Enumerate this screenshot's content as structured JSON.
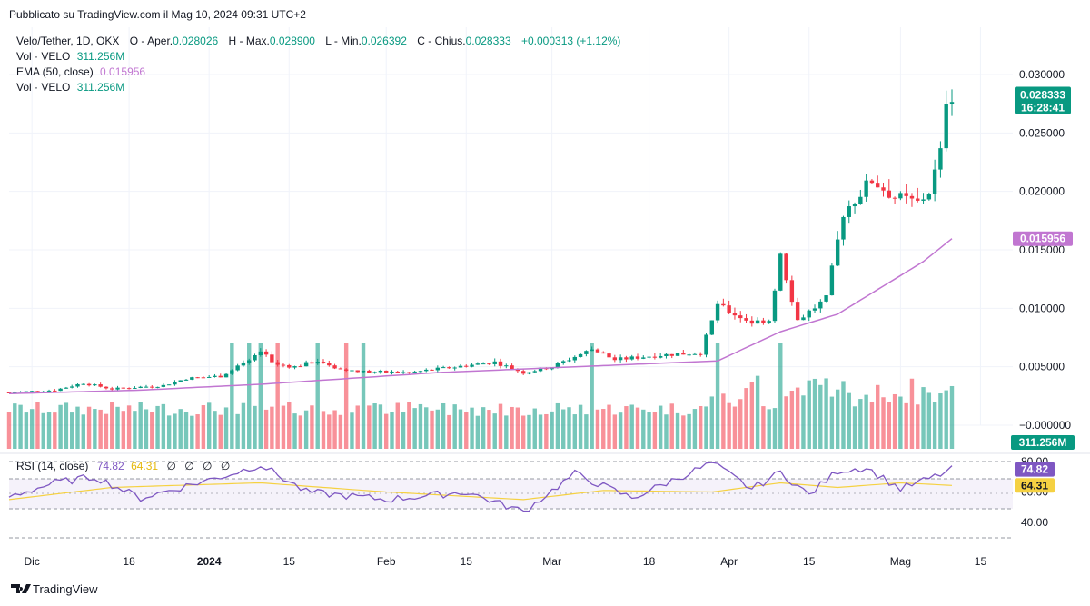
{
  "published": "Pubblicato su TradingView.com il Mag 10, 2024 09:31 UTC+2",
  "legend": {
    "symbol": "Velo/Tether, 1D, OKX",
    "open_label": "O - Aper.",
    "open": "0.028026",
    "high_label": "H - Max.",
    "high": "0.028900",
    "low_label": "L - Min.",
    "low": "0.026392",
    "close_label": "C - Chius.",
    "close": "0.028333",
    "change": "+0.000313 (+1.12%)",
    "vol1_label": "Vol · VELO",
    "vol1": "311.256M",
    "ema_label": "EMA (50, close)",
    "ema": "0.015956",
    "vol2_label": "Vol · VELO",
    "vol2": "311.256M"
  },
  "rsi_legend": {
    "label": "RSI (14, close)",
    "rsi": "74.82",
    "ma": "64.31",
    "extras": [
      "∅",
      "∅",
      "∅",
      "∅"
    ]
  },
  "badges": {
    "price": "0.028333",
    "countdown": "16:28:41",
    "ema": "0.015956",
    "volume": "311.256M",
    "rsi": "74.82",
    "rsi_ma": "64.31"
  },
  "price_axis": [
    "0.030000",
    "0.025000",
    "0.020000",
    "0.015000",
    "0.010000",
    "0.005000",
    "−0.000000"
  ],
  "rsi_axis": [
    "80.00",
    "60.00",
    "40.00"
  ],
  "x_axis": [
    "Dic",
    "18",
    "2024",
    "15",
    "Feb",
    "15",
    "Mar",
    "18",
    "Apr",
    "15",
    "Mag",
    "15"
  ],
  "brand": "TradingView",
  "colors": {
    "up": "#089981",
    "down": "#f23645",
    "ema": "#c176d1",
    "rsi": "#7e57c2",
    "rsi_ma": "#f5d142"
  },
  "chart_data": {
    "type": "candlestick",
    "title": "Velo/Tether, 1D, OKX",
    "x_start": "2023-11-27",
    "x_end": "2024-05-10",
    "price_range": [
      0,
      0.03
    ],
    "rsi_range": [
      40,
      80
    ],
    "price_path": [
      [
        "2023-11-27",
        0.0028
      ],
      [
        "2023-12-05",
        0.003
      ],
      [
        "2023-12-10",
        0.0036
      ],
      [
        "2023-12-15",
        0.0031
      ],
      [
        "2023-12-24",
        0.0034
      ],
      [
        "2023-12-28",
        0.004
      ],
      [
        "2024-01-03",
        0.0042
      ],
      [
        "2024-01-08",
        0.0055
      ],
      [
        "2024-01-10",
        0.0062
      ],
      [
        "2024-01-13",
        0.0052
      ],
      [
        "2024-01-16",
        0.005
      ],
      [
        "2024-01-20",
        0.0055
      ],
      [
        "2024-01-25",
        0.0046
      ],
      [
        "2024-02-05",
        0.0045
      ],
      [
        "2024-02-15",
        0.0051
      ],
      [
        "2024-02-20",
        0.0054
      ],
      [
        "2024-02-25",
        0.0045
      ],
      [
        "2024-03-01",
        0.005
      ],
      [
        "2024-03-08",
        0.0065
      ],
      [
        "2024-03-12",
        0.0056
      ],
      [
        "2024-03-20",
        0.006
      ],
      [
        "2024-03-27",
        0.0062
      ],
      [
        "2024-03-30",
        0.0102
      ],
      [
        "2024-04-05",
        0.0088
      ],
      [
        "2024-04-08",
        0.009
      ],
      [
        "2024-04-10",
        0.0145
      ],
      [
        "2024-04-13",
        0.009
      ],
      [
        "2024-04-18",
        0.0108
      ],
      [
        "2024-04-21",
        0.0182
      ],
      [
        "2024-04-26",
        0.021
      ],
      [
        "2024-04-30",
        0.0195
      ],
      [
        "2024-05-04",
        0.019
      ],
      [
        "2024-05-06",
        0.02
      ],
      [
        "2024-05-08",
        0.0232
      ],
      [
        "2024-05-09",
        0.028
      ],
      [
        "2024-05-10",
        0.028333
      ]
    ],
    "ema_path": [
      [
        "2023-11-27",
        0.0027
      ],
      [
        "2023-12-20",
        0.003
      ],
      [
        "2024-01-10",
        0.0035
      ],
      [
        "2024-02-10",
        0.0045
      ],
      [
        "2024-03-15",
        0.0052
      ],
      [
        "2024-03-30",
        0.0055
      ],
      [
        "2024-04-10",
        0.008
      ],
      [
        "2024-04-20",
        0.0095
      ],
      [
        "2024-04-30",
        0.0125
      ],
      [
        "2024-05-05",
        0.014
      ],
      [
        "2024-05-10",
        0.015956
      ]
    ],
    "volume_spikes": [
      [
        "2024-01-05",
        0.022
      ],
      [
        "2024-01-08",
        0.024
      ],
      [
        "2024-01-10",
        0.062
      ],
      [
        "2024-01-13",
        0.016
      ],
      [
        "2024-01-20",
        0.023
      ],
      [
        "2024-01-25",
        0.032
      ],
      [
        "2024-01-28",
        0.026
      ],
      [
        "2024-03-08",
        0.014
      ],
      [
        "2024-03-30",
        0.023
      ],
      [
        "2024-04-10",
        0.015
      ]
    ],
    "rsi_path": [
      [
        "2023-11-27",
        57
      ],
      [
        "2023-12-05",
        66
      ],
      [
        "2023-12-12",
        70
      ],
      [
        "2023-12-20",
        56
      ],
      [
        "2024-01-05",
        72
      ],
      [
        "2024-01-10",
        78
      ],
      [
        "2024-01-18",
        60
      ],
      [
        "2024-02-01",
        55
      ],
      [
        "2024-02-15",
        60
      ],
      [
        "2024-02-25",
        47
      ],
      [
        "2024-03-05",
        72
      ],
      [
        "2024-03-15",
        56
      ],
      [
        "2024-03-29",
        79
      ],
      [
        "2024-04-05",
        62
      ],
      [
        "2024-04-10",
        73
      ],
      [
        "2024-04-15",
        58
      ],
      [
        "2024-04-20",
        74
      ],
      [
        "2024-04-25",
        76
      ],
      [
        "2024-05-01",
        62
      ],
      [
        "2024-05-07",
        70
      ],
      [
        "2024-05-10",
        74.82
      ]
    ],
    "rsi_ma_path": [
      [
        "2023-11-27",
        55
      ],
      [
        "2023-12-15",
        63
      ],
      [
        "2024-01-10",
        66
      ],
      [
        "2024-02-01",
        60
      ],
      [
        "2024-02-25",
        55
      ],
      [
        "2024-03-10",
        61
      ],
      [
        "2024-03-29",
        60
      ],
      [
        "2024-04-10",
        66
      ],
      [
        "2024-04-20",
        63
      ],
      [
        "2024-05-01",
        66
      ],
      [
        "2024-05-10",
        64.31
      ]
    ]
  }
}
